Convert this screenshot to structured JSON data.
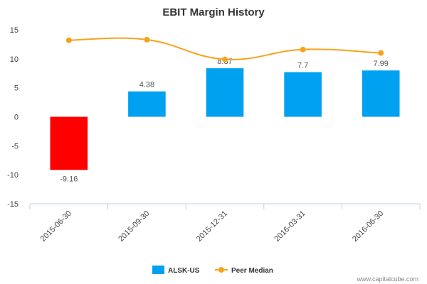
{
  "chart_data": {
    "type": "bar",
    "title": "EBIT Margin History",
    "categories": [
      "2015-06-30",
      "2015-09-30",
      "2015-12-31",
      "2016-03-31",
      "2016-06-30"
    ],
    "series": [
      {
        "name": "ALSK-US",
        "type": "bar",
        "values": [
          -9.16,
          4.38,
          8.37,
          7.7,
          7.99
        ],
        "labels": [
          "-9.16",
          "4.38",
          "8.37",
          "7.7",
          "7.99"
        ],
        "color": "#00A1F1",
        "negative_color": "#FF0000"
      },
      {
        "name": "Peer Median",
        "type": "line",
        "values": [
          13.2,
          13.3,
          9.9,
          11.6,
          11.0
        ],
        "color": "#F7A21B"
      }
    ],
    "ylim": [
      -15,
      15
    ],
    "yticks": [
      15,
      10,
      5,
      0,
      -5,
      -10,
      -15
    ],
    "grid": false,
    "legend": "bottom-center"
  },
  "credit": "www.capitalcube.com"
}
